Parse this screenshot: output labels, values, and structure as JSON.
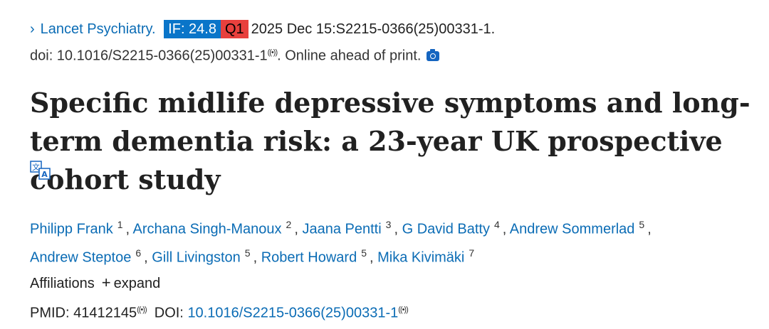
{
  "citation": {
    "chevron": "›",
    "journal": "Lancet Psychiatry.",
    "impact_factor": "IF: 24.8",
    "quartile": "Q1",
    "date_and_id": "2025 Dec 15:S2215-0366(25)00331-1.",
    "doi_text": "doi: 10.1016/S2215-0366(25)00331-1",
    "live_icon": "((•))",
    "status": ". Online ahead of print.",
    "camera_icon": "camera-icon"
  },
  "title": "Specific midlife depressive symptoms and long-term dementia risk: a 23-year UK prospective cohort study",
  "translate_icon": "translate-icon",
  "authors": [
    {
      "name": "Philipp Frank",
      "aff": "1"
    },
    {
      "name": "Archana Singh-Manoux",
      "aff": "2"
    },
    {
      "name": "Jaana Pentti",
      "aff": "3"
    },
    {
      "name": "G David Batty",
      "aff": "4"
    },
    {
      "name": "Andrew Sommerlad",
      "aff": "5"
    },
    {
      "name": "Andrew Steptoe",
      "aff": "6"
    },
    {
      "name": "Gill Livingston",
      "aff": "5"
    },
    {
      "name": "Robert Howard",
      "aff": "5"
    },
    {
      "name": "Mika Kivimäki",
      "aff": "7"
    }
  ],
  "affiliations": {
    "label": "Affiliations",
    "plus": "+",
    "expand": "expand"
  },
  "ids": {
    "pmid_label": "PMID:",
    "pmid": "41412145",
    "doi_label": "DOI:",
    "doi": "10.1016/S2215-0366(25)00331-1",
    "live_icon": "((•))"
  }
}
